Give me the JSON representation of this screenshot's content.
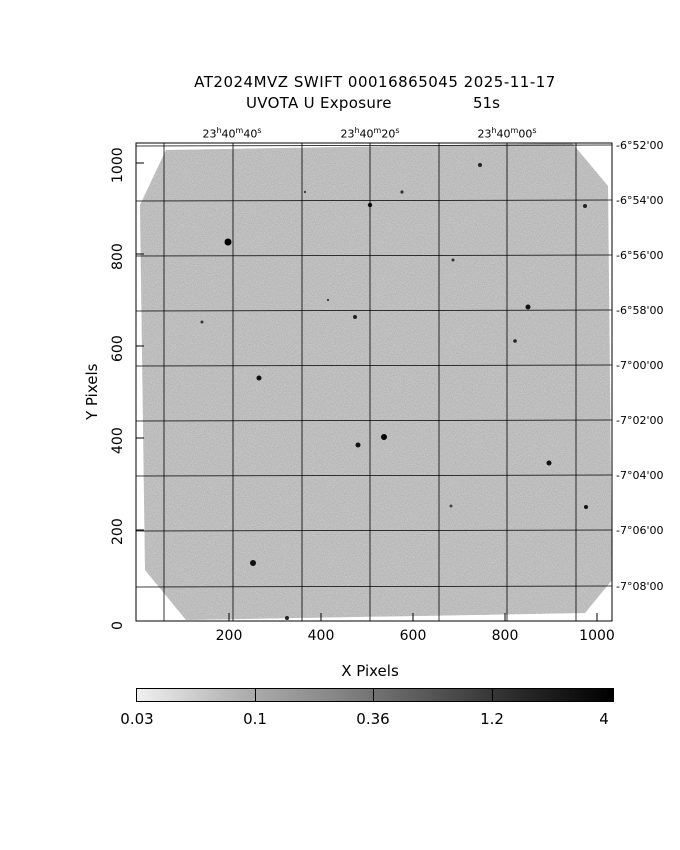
{
  "header": {
    "title_line1": "AT2024MVZ SWIFT 00016865045 2025-11-17",
    "title_line2": "UVOTA U Exposure",
    "exposure": "51s"
  },
  "axes": {
    "x_label": "X Pixels",
    "y_label": "Y Pixels",
    "x_ticks": [
      "200",
      "400",
      "600",
      "800",
      "1000"
    ],
    "y_ticks": [
      "0",
      "200",
      "400",
      "600",
      "800",
      "1000"
    ],
    "x_range": [
      0,
      1030
    ],
    "y_range": [
      0,
      1035
    ]
  },
  "wcs": {
    "ra_labels": [
      {
        "h": "23",
        "m": "40",
        "s": "40"
      },
      {
        "h": "23",
        "m": "40",
        "s": "20"
      },
      {
        "h": "23",
        "m": "40",
        "s": "00"
      }
    ],
    "dec_labels": [
      "-6°52'00",
      "-6°54'00",
      "-6°56'00",
      "-6°58'00",
      "-7°00'00",
      "-7°02'00",
      "-7°04'00",
      "-7°06'00",
      "-7°08'00"
    ]
  },
  "colorbar": {
    "labels": [
      "0.03",
      "0.1",
      "0.36",
      "1.2",
      "4"
    ],
    "scale": "log"
  },
  "colors": {
    "background": "#ffffff",
    "image_noise": "#9a9a9a",
    "grid": "#000000"
  }
}
